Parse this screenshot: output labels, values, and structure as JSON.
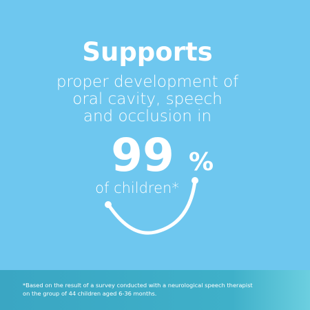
{
  "headline": {
    "title": "Supports",
    "lines": [
      "proper development of",
      "oral cavity, speech",
      "and occlusion in"
    ]
  },
  "stat": {
    "number": "99",
    "unit": "%",
    "caption": "of children*"
  },
  "footnote": {
    "lines": [
      "*Based on the result of a survey conducted with a neurological speech therapist",
      "on the group of 44 children aged 6-36 months."
    ]
  }
}
